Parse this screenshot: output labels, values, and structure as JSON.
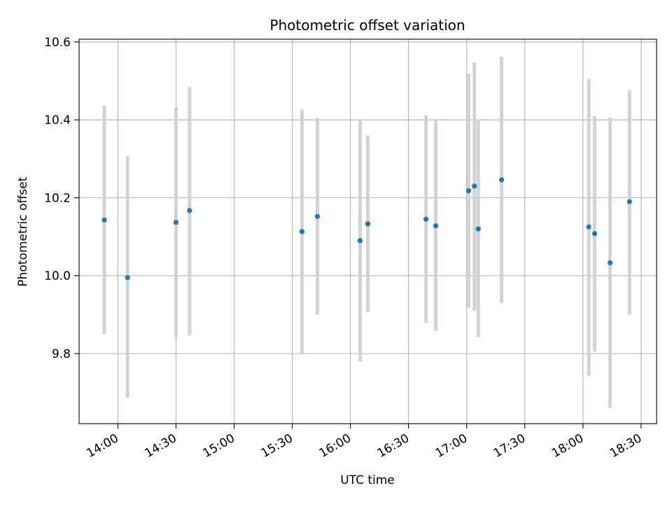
{
  "chart_data": {
    "type": "scatter",
    "title": "Photometric offset variation",
    "xlabel": "UTC time",
    "ylabel": "Photometric offset",
    "x_unit": "time of day (UTC)",
    "xlim": [
      "13:40",
      "18:38"
    ],
    "ylim": [
      9.62,
      10.607
    ],
    "x_ticks": [
      "14:00",
      "14:30",
      "15:00",
      "15:30",
      "16:00",
      "16:30",
      "17:00",
      "17:30",
      "18:00",
      "18:30"
    ],
    "y_ticks": [
      9.8,
      10.0,
      10.2,
      10.4,
      10.6
    ],
    "y_tick_labels": [
      "9.8",
      "10.0",
      "10.2",
      "10.4",
      "10.6"
    ],
    "grid": true,
    "x_tick_rotation": "30 degrees",
    "point_color": "#1f77b4",
    "errorbar_color": "#d3d3d3",
    "points": [
      {
        "x": "13:53",
        "y": 10.143,
        "y_low": 9.85,
        "y_high": 10.437
      },
      {
        "x": "14:05",
        "y": 9.995,
        "y_low": 9.686,
        "y_high": 10.307
      },
      {
        "x": "14:30",
        "y": 10.137,
        "y_low": 9.842,
        "y_high": 10.432
      },
      {
        "x": "14:37",
        "y": 10.167,
        "y_low": 9.846,
        "y_high": 10.484
      },
      {
        "x": "15:35",
        "y": 10.113,
        "y_low": 9.8,
        "y_high": 10.427
      },
      {
        "x": "15:43",
        "y": 10.152,
        "y_low": 9.9,
        "y_high": 10.405
      },
      {
        "x": "16:05",
        "y": 10.09,
        "y_low": 9.78,
        "y_high": 10.4
      },
      {
        "x": "16:09",
        "y": 10.133,
        "y_low": 9.907,
        "y_high": 10.36
      },
      {
        "x": "16:39",
        "y": 10.145,
        "y_low": 9.878,
        "y_high": 10.412
      },
      {
        "x": "16:44",
        "y": 10.128,
        "y_low": 9.858,
        "y_high": 10.4
      },
      {
        "x": "17:01",
        "y": 10.218,
        "y_low": 9.918,
        "y_high": 10.518
      },
      {
        "x": "17:04",
        "y": 10.23,
        "y_low": 9.91,
        "y_high": 10.547
      },
      {
        "x": "17:06",
        "y": 10.12,
        "y_low": 9.843,
        "y_high": 10.4
      },
      {
        "x": "17:18",
        "y": 10.246,
        "y_low": 9.93,
        "y_high": 10.562
      },
      {
        "x": "18:03",
        "y": 10.125,
        "y_low": 9.743,
        "y_high": 10.505
      },
      {
        "x": "18:06",
        "y": 10.108,
        "y_low": 9.805,
        "y_high": 10.41
      },
      {
        "x": "18:14",
        "y": 10.033,
        "y_low": 9.66,
        "y_high": 10.406
      },
      {
        "x": "18:24",
        "y": 10.19,
        "y_low": 9.9,
        "y_high": 10.477
      }
    ]
  }
}
